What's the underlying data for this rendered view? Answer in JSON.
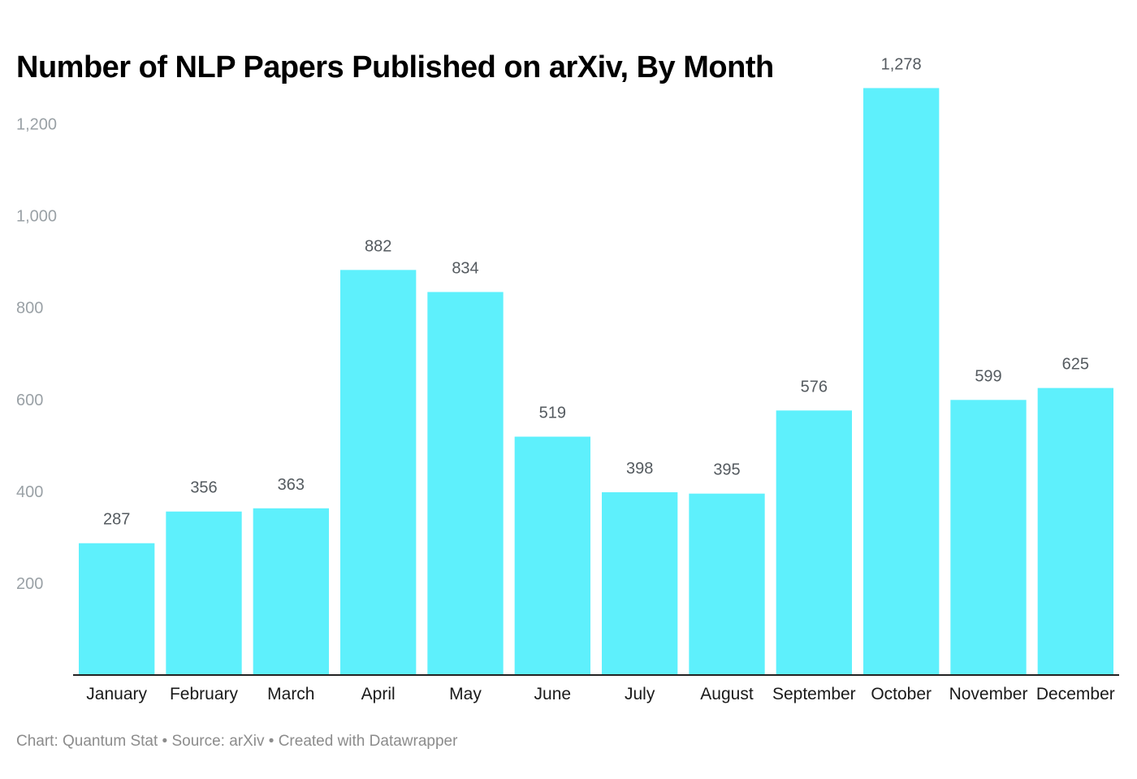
{
  "chart_data": {
    "type": "bar",
    "title": "Number of NLP Papers Published on arXiv,  By Month",
    "xlabel": "",
    "ylabel": "",
    "categories": [
      "January",
      "February",
      "March",
      "April",
      "May",
      "June",
      "July",
      "August",
      "September",
      "October",
      "November",
      "December"
    ],
    "values": [
      287,
      356,
      363,
      882,
      834,
      519,
      398,
      395,
      576,
      1278,
      599,
      625
    ],
    "value_labels": [
      "287",
      "356",
      "363",
      "882",
      "834",
      "519",
      "398",
      "395",
      "576",
      "1,278",
      "599",
      "625"
    ],
    "yticks": [
      200,
      400,
      600,
      800,
      1000,
      1200
    ],
    "ytick_labels": [
      "200",
      "400",
      "600",
      "800",
      "1,000",
      "1,200"
    ],
    "ylim": [
      0,
      1300
    ],
    "grid": false,
    "legend": "none",
    "bar_color": "#5ef0fc",
    "footer": "Chart: Quantum Stat • Source: arXiv • Created with Datawrapper"
  }
}
